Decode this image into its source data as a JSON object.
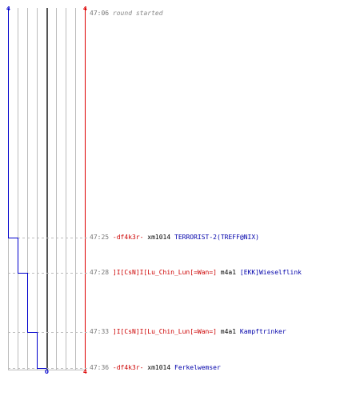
{
  "colors": {
    "team_a": "#0000cc",
    "team_b": "#dd0000",
    "grid": "#bbbbbb",
    "center": "#555555",
    "dash": "#bbbbbb"
  },
  "scores": {
    "top_left": "4",
    "top_right": "4",
    "bottom_center": "0",
    "bottom_right": "4"
  },
  "events": [
    {
      "time": "47:06",
      "text": "round started"
    },
    {
      "time": "47:25",
      "killer": "-df4k3r-",
      "weapon": "xm1014",
      "victim": "TERRORIST-2(TREFF@NIX)"
    },
    {
      "time": "47:28",
      "killer": "]I[CsN]I[Lu_Chin_Lun[=Wan=]",
      "weapon": "m4a1",
      "victim": "[EKK]Wieselflink"
    },
    {
      "time": "47:33",
      "killer": "]I[CsN]I[Lu_Chin_Lun[=Wan=]",
      "weapon": "m4a1",
      "victim": "Kampftrinker"
    },
    {
      "time": "47:36",
      "killer": "-df4k3r-",
      "weapon": "xm1014",
      "victim": "Ferkelwemser"
    }
  ]
}
